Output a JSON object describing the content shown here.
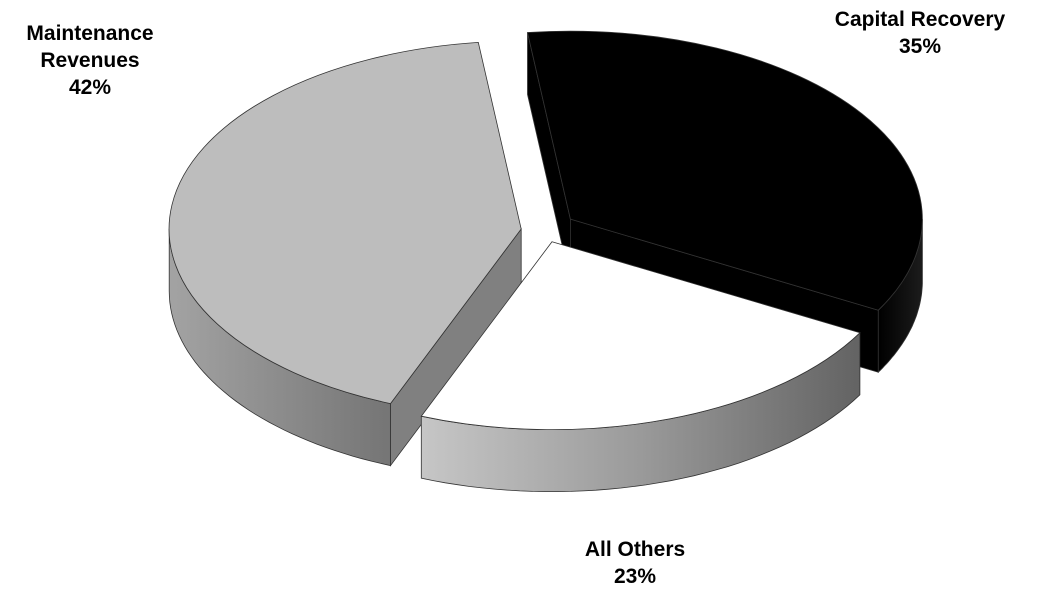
{
  "chart_data": {
    "type": "pie",
    "title": "",
    "categories": [
      "Capital Recovery",
      "All Others",
      "Maintenance Revenues"
    ],
    "values": [
      35,
      23,
      42
    ],
    "labels": [
      {
        "lines": [
          "Capital Recovery"
        ],
        "percent": "35%"
      },
      {
        "lines": [
          "All Others"
        ],
        "percent": "23%"
      },
      {
        "lines": [
          "Maintenance",
          "Revenues"
        ],
        "percent": "42%"
      }
    ],
    "colors": {
      "Capital Recovery": "#000000",
      "All Others": "#ffffff",
      "Maintenance Revenues": "#bdbdbd"
    },
    "style": "3d-exploded",
    "legend": "none"
  }
}
